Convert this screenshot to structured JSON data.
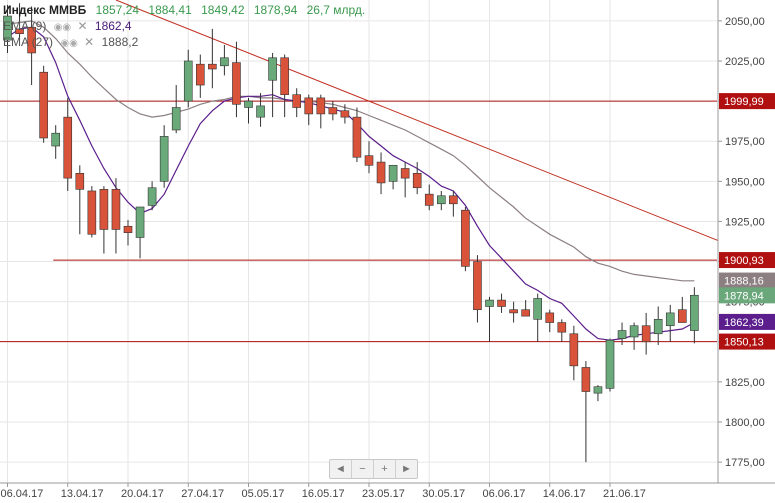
{
  "legend": {
    "title": "Индекс ММВБ",
    "open": "1857,24",
    "high": "1884,41",
    "low": "1849,42",
    "close": "1878,94",
    "volume": "26,7 млрд.",
    "ema9_label": "EMA (9)",
    "ema9_value": "1862,4",
    "ema27_label": "EMA (27)",
    "ema27_value": "1888,2"
  },
  "navigator": {
    "left": "◄",
    "minus": "−",
    "plus": "+",
    "right": "►"
  },
  "colors": {
    "up": "#6aaa7a",
    "down": "#d9533a",
    "ema9": "#5b1e8c",
    "ema27": "#8c7f82",
    "level": "#b01010",
    "trend": "#c03020",
    "grid": "#e6e6e6",
    "close_tag": "#6aa77a"
  },
  "chart_data": {
    "type": "candlestick",
    "title": "Индекс ММВБ",
    "ylim": [
      1762,
      2063
    ],
    "y_ticks": [
      1775,
      1800,
      1825,
      1850,
      1875,
      1900,
      1925,
      1950,
      1975,
      2000,
      2025,
      2050
    ],
    "y_tick_labels": [
      "1775,00",
      "1800,00",
      "1825,00",
      "1850,00",
      "1875,00",
      "1900,00",
      "1925,00",
      "1950,00",
      "1975,00",
      "2000,00",
      "2025,00",
      "2050,00"
    ],
    "x_ticks": [
      {
        "label": "06.04.17",
        "i": 0
      },
      {
        "label": "13.04.17",
        "i": 5
      },
      {
        "label": "20.04.17",
        "i": 10
      },
      {
        "label": "27.04.17",
        "i": 15
      },
      {
        "label": "05.05.17",
        "i": 20
      },
      {
        "label": "16.05.17",
        "i": 25
      },
      {
        "label": "23.05.17",
        "i": 30
      },
      {
        "label": "30.05.17",
        "i": 35
      },
      {
        "label": "06.06.17",
        "i": 40
      },
      {
        "label": "14.06.17",
        "i": 45
      },
      {
        "label": "21.06.17",
        "i": 50
      }
    ],
    "candles": [
      {
        "o": 2038,
        "h": 2060,
        "l": 2030,
        "c": 2053
      },
      {
        "o": 2045,
        "h": 2061,
        "l": 2038,
        "c": 2042
      },
      {
        "o": 2046,
        "h": 2059,
        "l": 2010,
        "c": 2030
      },
      {
        "o": 2018,
        "h": 2022,
        "l": 1974,
        "c": 1977
      },
      {
        "o": 1972,
        "h": 1985,
        "l": 1964,
        "c": 1980
      },
      {
        "o": 1990,
        "h": 2002,
        "l": 1944,
        "c": 1952
      },
      {
        "o": 1955,
        "h": 1960,
        "l": 1917,
        "c": 1945
      },
      {
        "o": 1944,
        "h": 1947,
        "l": 1915,
        "c": 1917
      },
      {
        "o": 1945,
        "h": 1947,
        "l": 1905,
        "c": 1920
      },
      {
        "o": 1945,
        "h": 1952,
        "l": 1905,
        "c": 1920
      },
      {
        "o": 1922,
        "h": 1926,
        "l": 1910,
        "c": 1918
      },
      {
        "o": 1915,
        "h": 1934,
        "l": 1902,
        "c": 1934
      },
      {
        "o": 1935,
        "h": 1950,
        "l": 1932,
        "c": 1946
      },
      {
        "o": 1950,
        "h": 1985,
        "l": 1946,
        "c": 1978
      },
      {
        "o": 1982,
        "h": 2010,
        "l": 1980,
        "c": 1996
      },
      {
        "o": 2000,
        "h": 2032,
        "l": 1996,
        "c": 2025
      },
      {
        "o": 2023,
        "h": 2029,
        "l": 2002,
        "c": 2010
      },
      {
        "o": 2023,
        "h": 2045,
        "l": 2008,
        "c": 2020
      },
      {
        "o": 2022,
        "h": 2035,
        "l": 2016,
        "c": 2027
      },
      {
        "o": 2024,
        "h": 2037,
        "l": 1990,
        "c": 1998
      },
      {
        "o": 1996,
        "h": 2002,
        "l": 1986,
        "c": 2000
      },
      {
        "o": 1990,
        "h": 2005,
        "l": 1984,
        "c": 1997
      },
      {
        "o": 2013,
        "h": 2030,
        "l": 1990,
        "c": 2027
      },
      {
        "o": 2027,
        "h": 2029,
        "l": 1990,
        "c": 2004
      },
      {
        "o": 2004,
        "h": 2008,
        "l": 1990,
        "c": 1996
      },
      {
        "o": 2002,
        "h": 2004,
        "l": 1985,
        "c": 1992
      },
      {
        "o": 2002,
        "h": 2004,
        "l": 1983,
        "c": 1992
      },
      {
        "o": 1996,
        "h": 2000,
        "l": 1988,
        "c": 1992
      },
      {
        "o": 1994,
        "h": 1998,
        "l": 1986,
        "c": 1990
      },
      {
        "o": 1990,
        "h": 1996,
        "l": 1962,
        "c": 1965
      },
      {
        "o": 1966,
        "h": 1975,
        "l": 1955,
        "c": 1960
      },
      {
        "o": 1962,
        "h": 1968,
        "l": 1942,
        "c": 1949
      },
      {
        "o": 1950,
        "h": 1960,
        "l": 1945,
        "c": 1960
      },
      {
        "o": 1958,
        "h": 1962,
        "l": 1940,
        "c": 1952
      },
      {
        "o": 1955,
        "h": 1962,
        "l": 1942,
        "c": 1946
      },
      {
        "o": 1942,
        "h": 1948,
        "l": 1932,
        "c": 1935
      },
      {
        "o": 1936,
        "h": 1944,
        "l": 1932,
        "c": 1941
      },
      {
        "o": 1941,
        "h": 1944,
        "l": 1928,
        "c": 1936
      },
      {
        "o": 1932,
        "h": 1934,
        "l": 1894,
        "c": 1897
      },
      {
        "o": 1900,
        "h": 1904,
        "l": 1862,
        "c": 1870
      },
      {
        "o": 1872,
        "h": 1878,
        "l": 1850,
        "c": 1876
      },
      {
        "o": 1876,
        "h": 1880,
        "l": 1868,
        "c": 1872
      },
      {
        "o": 1870,
        "h": 1875,
        "l": 1862,
        "c": 1868
      },
      {
        "o": 1870,
        "h": 1876,
        "l": 1866,
        "c": 1866
      },
      {
        "o": 1864,
        "h": 1880,
        "l": 1850,
        "c": 1877
      },
      {
        "o": 1868,
        "h": 1870,
        "l": 1856,
        "c": 1862
      },
      {
        "o": 1862,
        "h": 1864,
        "l": 1850,
        "c": 1856
      },
      {
        "o": 1855,
        "h": 1860,
        "l": 1826,
        "c": 1835
      },
      {
        "o": 1834,
        "h": 1838,
        "l": 1775,
        "c": 1819
      },
      {
        "o": 1818,
        "h": 1823,
        "l": 1813,
        "c": 1822
      },
      {
        "o": 1821,
        "h": 1852,
        "l": 1819,
        "c": 1851
      },
      {
        "o": 1852,
        "h": 1862,
        "l": 1848,
        "c": 1857
      },
      {
        "o": 1853,
        "h": 1862,
        "l": 1845,
        "c": 1860
      },
      {
        "o": 1860,
        "h": 1868,
        "l": 1842,
        "c": 1850
      },
      {
        "o": 1855,
        "h": 1872,
        "l": 1848,
        "c": 1864
      },
      {
        "o": 1860,
        "h": 1873,
        "l": 1850,
        "c": 1868
      },
      {
        "o": 1870,
        "h": 1878,
        "l": 1864,
        "c": 1862
      },
      {
        "o": 1857,
        "h": 1884,
        "l": 1849,
        "c": 1879
      }
    ],
    "ema9": [
      2040,
      2045,
      2046,
      2040,
      2024,
      2003,
      1988,
      1972,
      1958,
      1946,
      1937,
      1930,
      1933,
      1942,
      1957,
      1972,
      1986,
      1994,
      2000,
      2002,
      2003,
      2003,
      2004,
      2001,
      2000,
      1999,
      1997,
      1995,
      1993,
      1986,
      1978,
      1972,
      1966,
      1962,
      1958,
      1953,
      1947,
      1944,
      1935,
      1922,
      1910,
      1902,
      1894,
      1886,
      1882,
      1877,
      1874,
      1866,
      1858,
      1852,
      1851,
      1852,
      1854,
      1855,
      1856,
      1857,
      1858,
      1862
    ],
    "ema27": [
      2048,
      2049,
      2050,
      2046,
      2039,
      2030,
      2023,
      2015,
      2008,
      2001,
      1996,
      1992,
      1990,
      1991,
      1993,
      1995,
      1998,
      2000,
      2001,
      2003,
      2003,
      2002,
      2002,
      2001,
      2000,
      2000,
      1999,
      1998,
      1996,
      1994,
      1991,
      1988,
      1985,
      1982,
      1978,
      1974,
      1970,
      1966,
      1960,
      1953,
      1946,
      1940,
      1934,
      1927,
      1922,
      1917,
      1913,
      1909,
      1903,
      1899,
      1897,
      1894,
      1892,
      1891,
      1890,
      1889,
      1888,
      1888
    ],
    "levels": [
      {
        "value": 1999.99,
        "label": "1999,99",
        "from_i": -1
      },
      {
        "value": 1900.93,
        "label": "1900,93",
        "from_i": 3.8
      },
      {
        "value": 1850.13,
        "label": "1850,13",
        "from_i": -1
      }
    ],
    "trendline": {
      "i1": 9,
      "v1": 2063,
      "i2": 59,
      "v2": 1913
    },
    "price_tags": [
      {
        "value": 1888.16,
        "label": "1888,16",
        "series": "ema27"
      },
      {
        "value": 1878.94,
        "label": "1878,94",
        "series": "close"
      },
      {
        "value": 1862.39,
        "label": "1862,39",
        "series": "ema9"
      }
    ]
  }
}
